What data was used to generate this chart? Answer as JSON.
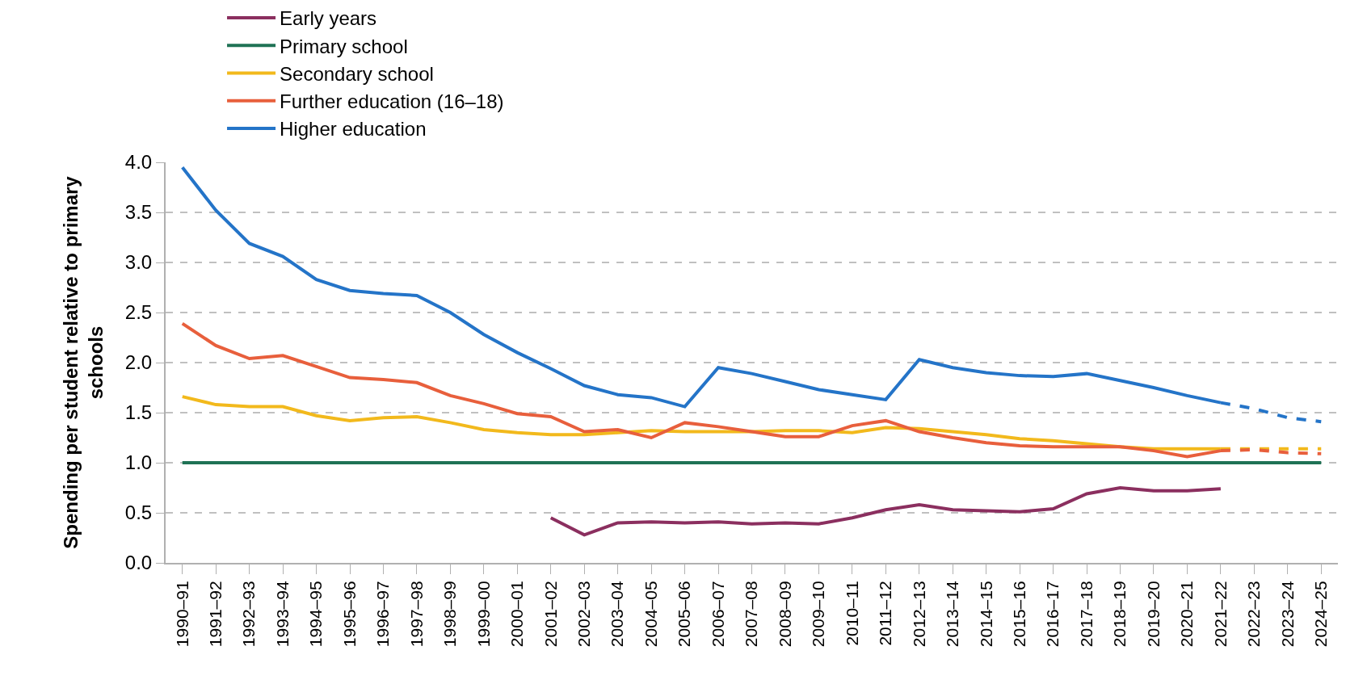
{
  "chart_data": {
    "type": "line",
    "ylabel": "Spending per student relative to primary schools",
    "categories": [
      "1990–91",
      "1991–92",
      "1992–93",
      "1993–94",
      "1994–95",
      "1995–96",
      "1996–97",
      "1997–98",
      "1998–99",
      "1999–00",
      "2000–01",
      "2001–02",
      "2002–03",
      "2003–04",
      "2004–05",
      "2005–06",
      "2006–07",
      "2007–08",
      "2008–09",
      "2009–10",
      "2010–11",
      "2011–12",
      "2012–13",
      "2013–14",
      "2014–15",
      "2015–16",
      "2016–17",
      "2017–18",
      "2018–19",
      "2019–20",
      "2020–21",
      "2021–22",
      "2022–23",
      "2023–24",
      "2024–25"
    ],
    "series": [
      {
        "name": "Early years",
        "color": "#8b2f5f",
        "values": [
          null,
          null,
          null,
          null,
          null,
          null,
          null,
          null,
          null,
          null,
          null,
          0.45,
          0.28,
          0.4,
          0.41,
          0.4,
          0.41,
          0.39,
          0.4,
          0.39,
          0.45,
          0.53,
          0.58,
          0.53,
          0.52,
          0.51,
          0.54,
          0.69,
          0.75,
          0.72,
          0.72,
          0.74,
          null,
          null,
          null
        ]
      },
      {
        "name": "Primary school",
        "color": "#1f7255",
        "values": [
          1.0,
          1.0,
          1.0,
          1.0,
          1.0,
          1.0,
          1.0,
          1.0,
          1.0,
          1.0,
          1.0,
          1.0,
          1.0,
          1.0,
          1.0,
          1.0,
          1.0,
          1.0,
          1.0,
          1.0,
          1.0,
          1.0,
          1.0,
          1.0,
          1.0,
          1.0,
          1.0,
          1.0,
          1.0,
          1.0,
          1.0,
          1.0,
          1.0,
          1.0,
          1.0
        ]
      },
      {
        "name": "Secondary school",
        "color": "#f2b91c",
        "values": [
          1.66,
          1.58,
          1.56,
          1.56,
          1.47,
          1.42,
          1.45,
          1.46,
          1.4,
          1.33,
          1.3,
          1.28,
          1.28,
          1.3,
          1.32,
          1.31,
          1.31,
          1.31,
          1.32,
          1.32,
          1.3,
          1.35,
          1.34,
          1.31,
          1.28,
          1.24,
          1.22,
          1.19,
          1.16,
          1.14,
          1.14,
          1.14,
          null,
          null,
          null
        ]
      },
      {
        "name": "Further education (16–18)",
        "color": "#e85f3c",
        "values": [
          2.39,
          2.17,
          2.04,
          2.07,
          1.96,
          1.85,
          1.83,
          1.8,
          1.67,
          1.59,
          1.49,
          1.46,
          1.31,
          1.33,
          1.25,
          1.4,
          1.36,
          1.31,
          1.26,
          1.26,
          1.37,
          1.42,
          1.31,
          1.25,
          1.2,
          1.17,
          1.16,
          1.16,
          1.16,
          1.12,
          1.06,
          1.12,
          null,
          null,
          null
        ]
      },
      {
        "name": "Higher education",
        "color": "#2474c8",
        "values": [
          3.95,
          3.52,
          3.19,
          3.06,
          2.83,
          2.72,
          2.69,
          2.67,
          2.5,
          2.28,
          2.1,
          1.94,
          1.77,
          1.68,
          1.65,
          1.56,
          1.95,
          1.89,
          1.81,
          1.73,
          1.68,
          1.63,
          2.03,
          1.95,
          1.9,
          1.87,
          1.86,
          1.89,
          1.82,
          1.75,
          1.67,
          1.6,
          null,
          null,
          null
        ]
      },
      {
        "color": "#f2b91c",
        "line_style": "dashed",
        "values": [
          null,
          null,
          null,
          null,
          null,
          null,
          null,
          null,
          null,
          null,
          null,
          null,
          null,
          null,
          null,
          null,
          null,
          null,
          null,
          null,
          null,
          null,
          null,
          null,
          null,
          null,
          null,
          null,
          null,
          null,
          null,
          1.14,
          1.14,
          1.14,
          1.14
        ]
      },
      {
        "color": "#e85f3c",
        "line_style": "dashed",
        "values": [
          null,
          null,
          null,
          null,
          null,
          null,
          null,
          null,
          null,
          null,
          null,
          null,
          null,
          null,
          null,
          null,
          null,
          null,
          null,
          null,
          null,
          null,
          null,
          null,
          null,
          null,
          null,
          null,
          null,
          null,
          null,
          1.12,
          1.13,
          1.1,
          1.09
        ]
      },
      {
        "color": "#2474c8",
        "line_style": "dashed",
        "values": [
          null,
          null,
          null,
          null,
          null,
          null,
          null,
          null,
          null,
          null,
          null,
          null,
          null,
          null,
          null,
          null,
          null,
          null,
          null,
          null,
          null,
          null,
          null,
          null,
          null,
          null,
          null,
          null,
          null,
          null,
          null,
          1.6,
          1.54,
          1.45,
          1.41
        ]
      }
    ],
    "ylim": [
      0,
      4.0
    ],
    "yticks": [
      {
        "value": 0,
        "label": "0.0"
      },
      {
        "value": 0.5,
        "label": "0.5"
      },
      {
        "value": 1,
        "label": "1.0"
      },
      {
        "value": 1.5,
        "label": "1.5"
      },
      {
        "value": 2,
        "label": "2.0"
      },
      {
        "value": 2.5,
        "label": "2.5"
      },
      {
        "value": 3,
        "label": "3.0"
      },
      {
        "value": 3.5,
        "label": "3.5"
      },
      {
        "value": 4,
        "label": "4.0"
      }
    ],
    "grid": "y",
    "legend": "top",
    "marker": "none",
    "line_style": "solid"
  }
}
